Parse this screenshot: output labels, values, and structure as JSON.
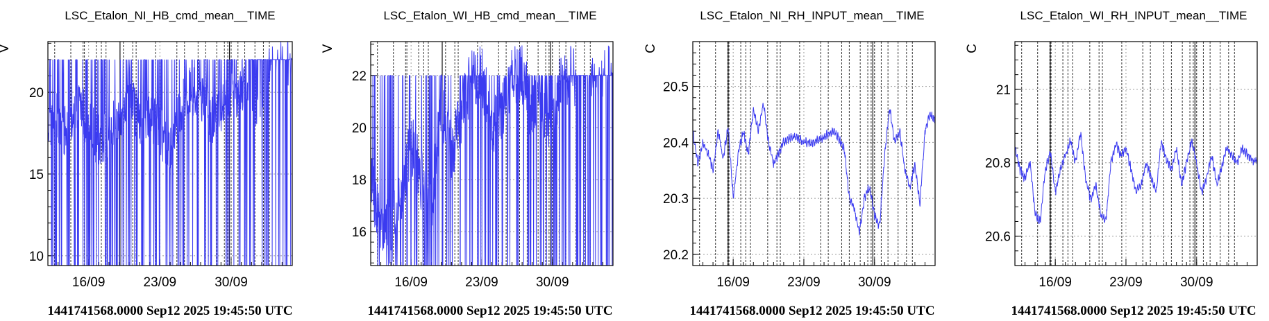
{
  "chart_data": [
    {
      "type": "line",
      "title": "LSC_Etalon_NI_HB_cmd_mean__TIME",
      "ylabel": "V",
      "footer": "1441741568.0000 Sep12 2025 19:45:50 UTC",
      "x_range": [
        "2025-09-12",
        "2025-10-06"
      ],
      "x_ticks": [
        {
          "date": "2025-09-16",
          "label": "16/09"
        },
        {
          "date": "2025-09-23",
          "label": "23/09"
        },
        {
          "date": "2025-09-30",
          "label": "30/09"
        }
      ],
      "ylim": [
        9.4,
        23.1
      ],
      "y_ticks": [
        {
          "value": 10,
          "label": "10"
        },
        {
          "value": 15,
          "label": "15"
        },
        {
          "value": 20,
          "label": "20"
        }
      ],
      "grid": true,
      "series_color": "#3b3bf0",
      "shape": {
        "base": 18.3,
        "amp": 1.6,
        "high": 22,
        "low": 9.4,
        "rail_up": 0.42,
        "rail_dn": 0.3,
        "start": "2025-09-12"
      },
      "series": [
        {
          "x": [
            "2025-09-12",
            "2025-09-13",
            "2025-09-14",
            "2025-09-15",
            "2025-09-16",
            "2025-09-17",
            "2025-09-18",
            "2025-09-19",
            "2025-09-20",
            "2025-09-21",
            "2025-09-22",
            "2025-09-23",
            "2025-09-24",
            "2025-09-25",
            "2025-09-26",
            "2025-09-27",
            "2025-09-28",
            "2025-09-29",
            "2025-09-30",
            "2025-10-01",
            "2025-10-02",
            "2025-10-03",
            "2025-10-04",
            "2025-10-05",
            "2025-10-06"
          ],
          "y": [
            18.0,
            18.5,
            17.2,
            19.5,
            18.0,
            17.0,
            17.5,
            18.5,
            20.0,
            18.0,
            18.5,
            17.5,
            16.5,
            19.0,
            20.0,
            20.0,
            18.0,
            19.0,
            19.5,
            20.5,
            19.5,
            19.5,
            22.0,
            22.0,
            22.0
          ]
        }
      ],
      "dashed_vlines": [
        "2025-09-12T16:00",
        "2025-09-14T06:00",
        "2025-09-15T11:00",
        "2025-09-15T14:00",
        "2025-09-16T18:00",
        "2025-09-17T06:00",
        "2025-09-17T17:00",
        "2025-09-19T10:00",
        "2025-09-20T08:00",
        "2025-09-20T16:00",
        "2025-09-22T14:00",
        "2025-09-24T16:00",
        "2025-09-25T10:00",
        "2025-09-26T18:00",
        "2025-09-27T12:00",
        "2025-09-28T14:00",
        "2025-09-29T08:00",
        "2025-09-29T16:00",
        "2025-09-30T00:00",
        "2025-09-30T16:00",
        "2025-10-01T08:00",
        "2025-10-02T08:00",
        "2025-10-03T04:00",
        "2025-10-03T18:00"
      ],
      "solid_vlines": [
        "2025-09-19T02:00",
        "2025-09-29T20:00"
      ]
    },
    {
      "type": "line",
      "title": "LSC_Etalon_WI_HB_cmd_mean__TIME",
      "ylabel": "V",
      "footer": "1441741568.0000 Sep12 2025 19:45:50 UTC",
      "x_range": [
        "2025-09-12",
        "2025-10-06"
      ],
      "x_ticks": [
        {
          "date": "2025-09-16",
          "label": "16/09"
        },
        {
          "date": "2025-09-23",
          "label": "23/09"
        },
        {
          "date": "2025-09-30",
          "label": "30/09"
        }
      ],
      "ylim": [
        14.7,
        23.3
      ],
      "y_ticks": [
        {
          "value": 16,
          "label": "16"
        },
        {
          "value": 18,
          "label": "18"
        },
        {
          "value": 20,
          "label": "20"
        },
        {
          "value": 22,
          "label": "22"
        }
      ],
      "grid": true,
      "series_color": "#3b3bf0",
      "shape": {
        "base": 17.5,
        "amp": 1.2,
        "high": 22,
        "low": 14.7,
        "rail_up": 0.48,
        "rail_dn": 0.28,
        "start": "2025-09-12"
      },
      "series": [
        {
          "x": [
            "2025-09-12",
            "2025-09-13",
            "2025-09-14",
            "2025-09-15",
            "2025-09-16",
            "2025-09-17",
            "2025-09-18",
            "2025-09-19",
            "2025-09-20",
            "2025-09-21",
            "2025-09-22",
            "2025-09-23",
            "2025-09-24",
            "2025-09-25",
            "2025-09-26",
            "2025-09-27",
            "2025-09-28",
            "2025-09-29",
            "2025-09-30",
            "2025-10-01",
            "2025-10-02",
            "2025-10-03",
            "2025-10-04",
            "2025-10-05",
            "2025-10-06"
          ],
          "y": [
            17.8,
            16.5,
            15.8,
            17.5,
            19.5,
            18.0,
            17.0,
            21.0,
            19.0,
            20.5,
            22.0,
            22.0,
            20.0,
            20.5,
            22.0,
            22.0,
            20.5,
            21.0,
            20.0,
            22.0,
            22.0,
            22.0,
            22.0,
            22.0,
            22.0
          ]
        }
      ],
      "dashed_vlines": [
        "2025-09-12T16:00",
        "2025-09-14T06:00",
        "2025-09-15T11:00",
        "2025-09-15T14:00",
        "2025-09-16T18:00",
        "2025-09-17T06:00",
        "2025-09-17T17:00",
        "2025-09-19T10:00",
        "2025-09-20T08:00",
        "2025-09-20T16:00",
        "2025-09-22T14:00",
        "2025-09-24T16:00",
        "2025-09-25T10:00",
        "2025-09-26T18:00",
        "2025-09-27T12:00",
        "2025-09-28T14:00",
        "2025-09-29T08:00",
        "2025-09-29T16:00",
        "2025-09-30T00:00",
        "2025-09-30T16:00",
        "2025-10-01T08:00",
        "2025-10-02T08:00",
        "2025-10-03T04:00",
        "2025-10-03T18:00"
      ],
      "solid_vlines": [
        "2025-09-19T02:00",
        "2025-09-29T20:00"
      ]
    },
    {
      "type": "line",
      "title": "LSC_Etalon_NI_RH_INPUT_mean__TIME",
      "ylabel": "C",
      "footer": "1441741568.0000 Sep12 2025 19:45:50 UTC",
      "x_range": [
        "2025-09-12",
        "2025-10-06"
      ],
      "x_ticks": [
        {
          "date": "2025-09-16",
          "label": "16/09"
        },
        {
          "date": "2025-09-23",
          "label": "23/09"
        },
        {
          "date": "2025-09-30",
          "label": "30/09"
        }
      ],
      "ylim": [
        20.18,
        20.58
      ],
      "y_ticks": [
        {
          "value": 20.2,
          "label": "20.2"
        },
        {
          "value": 20.3,
          "label": "20.3"
        },
        {
          "value": 20.4,
          "label": "20.4"
        },
        {
          "value": 20.5,
          "label": "20.5"
        }
      ],
      "grid": true,
      "series_color": "#3b3bf0",
      "series": [
        {
          "x": [
            "2025-09-12",
            "2025-09-12T12:00",
            "2025-09-13",
            "2025-09-13T12:00",
            "2025-09-14",
            "2025-09-14T12:00",
            "2025-09-15",
            "2025-09-15T12:00",
            "2025-09-16",
            "2025-09-16T12:00",
            "2025-09-17",
            "2025-09-17T12:00",
            "2025-09-18",
            "2025-09-18T12:00",
            "2025-09-19",
            "2025-09-19T12:00",
            "2025-09-20",
            "2025-09-21",
            "2025-09-22",
            "2025-09-23",
            "2025-09-24",
            "2025-09-25",
            "2025-09-26",
            "2025-09-27",
            "2025-09-27T12:00",
            "2025-09-28",
            "2025-09-28T12:00",
            "2025-09-29",
            "2025-09-29T12:00",
            "2025-09-30",
            "2025-09-30T12:00",
            "2025-10-01",
            "2025-10-01T12:00",
            "2025-10-02",
            "2025-10-02T12:00",
            "2025-10-03",
            "2025-10-03T12:00",
            "2025-10-04",
            "2025-10-04T12:00",
            "2025-10-05",
            "2025-10-05T12:00",
            "2025-10-06"
          ],
          "y": [
            20.42,
            20.36,
            20.4,
            20.38,
            20.35,
            20.42,
            20.37,
            20.43,
            20.3,
            20.38,
            20.42,
            20.38,
            20.46,
            20.42,
            20.47,
            20.4,
            20.36,
            20.4,
            20.41,
            20.4,
            20.4,
            20.41,
            20.42,
            20.39,
            20.3,
            20.28,
            20.24,
            20.3,
            20.32,
            20.27,
            20.25,
            20.38,
            20.46,
            20.4,
            20.42,
            20.35,
            20.32,
            20.36,
            20.29,
            20.42,
            20.45,
            20.44
          ]
        }
      ],
      "dashed_vlines": [
        "2025-09-12T16:00",
        "2025-09-14T06:00",
        "2025-09-15T11:00",
        "2025-09-15T14:00",
        "2025-09-16T18:00",
        "2025-09-17T06:00",
        "2025-09-17T17:00",
        "2025-09-19T10:00",
        "2025-09-20T08:00",
        "2025-09-20T16:00",
        "2025-09-22T14:00",
        "2025-09-24T16:00",
        "2025-09-25T10:00",
        "2025-09-26T18:00",
        "2025-09-27T12:00",
        "2025-09-28T14:00",
        "2025-09-29T08:00",
        "2025-09-29T16:00",
        "2025-09-30T00:00",
        "2025-09-30T16:00",
        "2025-10-01T08:00",
        "2025-10-02T08:00",
        "2025-10-03T04:00",
        "2025-10-03T18:00"
      ],
      "solid_vlines": [
        "2025-09-15T12:00",
        "2025-09-29T20:00"
      ]
    },
    {
      "type": "line",
      "title": "LSC_Etalon_WI_RH_INPUT_mean__TIME",
      "ylabel": "C",
      "footer": "1441741568.0000 Sep12 2025 19:45:50 UTC",
      "x_range": [
        "2025-09-12",
        "2025-10-06"
      ],
      "x_ticks": [
        {
          "date": "2025-09-16",
          "label": "16/09"
        },
        {
          "date": "2025-09-23",
          "label": "23/09"
        },
        {
          "date": "2025-09-30",
          "label": "30/09"
        }
      ],
      "ylim": [
        20.52,
        21.13
      ],
      "y_ticks": [
        {
          "value": 20.6,
          "label": "20.6"
        },
        {
          "value": 20.8,
          "label": "20.8"
        },
        {
          "value": 21,
          "label": "21"
        }
      ],
      "grid": true,
      "series_color": "#3b3bf0",
      "series": [
        {
          "x": [
            "2025-09-12",
            "2025-09-12T12:00",
            "2025-09-13",
            "2025-09-13T12:00",
            "2025-09-14",
            "2025-09-14T12:00",
            "2025-09-15",
            "2025-09-15T12:00",
            "2025-09-16",
            "2025-09-16T12:00",
            "2025-09-17",
            "2025-09-17T12:00",
            "2025-09-18",
            "2025-09-18T12:00",
            "2025-09-19",
            "2025-09-19T12:00",
            "2025-09-20",
            "2025-09-20T12:00",
            "2025-09-21",
            "2025-09-21T12:00",
            "2025-09-22",
            "2025-09-22T12:00",
            "2025-09-23",
            "2025-09-24",
            "2025-09-24T12:00",
            "2025-09-25",
            "2025-09-26",
            "2025-09-26T12:00",
            "2025-09-27",
            "2025-09-27T12:00",
            "2025-09-28",
            "2025-09-28T12:00",
            "2025-09-29",
            "2025-09-29T12:00",
            "2025-09-30",
            "2025-09-30T12:00",
            "2025-10-01",
            "2025-10-01T12:00",
            "2025-10-02",
            "2025-10-03",
            "2025-10-04",
            "2025-10-04T12:00",
            "2025-10-05",
            "2025-10-06"
          ],
          "y": [
            20.84,
            20.78,
            20.76,
            20.8,
            20.66,
            20.64,
            20.78,
            20.83,
            20.72,
            20.78,
            20.82,
            20.86,
            20.8,
            20.88,
            20.76,
            20.7,
            20.74,
            20.66,
            20.64,
            20.8,
            20.85,
            20.82,
            20.84,
            20.72,
            20.74,
            20.8,
            20.72,
            20.86,
            20.81,
            20.78,
            20.84,
            20.74,
            20.8,
            20.86,
            20.8,
            20.72,
            20.76,
            20.82,
            20.74,
            20.84,
            20.8,
            20.84,
            20.82,
            20.8
          ]
        }
      ],
      "dashed_vlines": [
        "2025-09-12T16:00",
        "2025-09-14T06:00",
        "2025-09-15T11:00",
        "2025-09-15T14:00",
        "2025-09-16T18:00",
        "2025-09-17T06:00",
        "2025-09-17T17:00",
        "2025-09-19T10:00",
        "2025-09-20T08:00",
        "2025-09-20T16:00",
        "2025-09-22T14:00",
        "2025-09-24T16:00",
        "2025-09-25T10:00",
        "2025-09-26T18:00",
        "2025-09-27T12:00",
        "2025-09-28T14:00",
        "2025-09-29T08:00",
        "2025-09-29T16:00",
        "2025-09-30T00:00",
        "2025-09-30T16:00",
        "2025-10-01T08:00",
        "2025-10-02T08:00",
        "2025-10-03T04:00",
        "2025-10-03T18:00"
      ],
      "solid_vlines": [
        "2025-09-15T12:00",
        "2025-09-29T20:00"
      ]
    }
  ]
}
